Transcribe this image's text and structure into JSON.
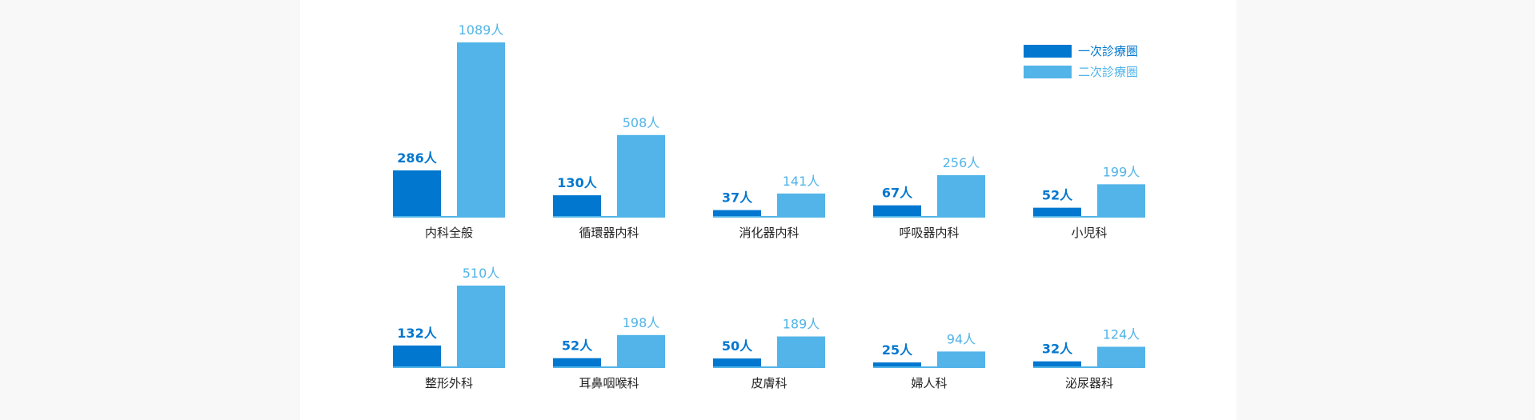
{
  "colors": {
    "primary": "#0277cf",
    "secondary": "#52b4e8",
    "axis": "#52b4e8",
    "text": "#222222"
  },
  "legend": {
    "series1": "一次診療圏",
    "series2": "二次診療圏"
  },
  "unit": "人",
  "chart_data": {
    "type": "bar",
    "legend_position": "top-right",
    "grid": false,
    "series": [
      {
        "name": "一次診療圏",
        "color": "#0277cf"
      },
      {
        "name": "二次診療圏",
        "color": "#52b4e8"
      }
    ],
    "rows": [
      {
        "ylim": [
          0,
          1089
        ],
        "categories": [
          "内科全般",
          "循環器内科",
          "消化器内科",
          "呼吸器内科",
          "小児科"
        ],
        "values": [
          [
            286,
            130,
            37,
            67,
            52
          ],
          [
            1089,
            508,
            141,
            256,
            199
          ]
        ]
      },
      {
        "ylim": [
          0,
          510
        ],
        "categories": [
          "整形外科",
          "耳鼻咽喉科",
          "皮膚科",
          "婦人科",
          "泌尿器科"
        ],
        "values": [
          [
            132,
            52,
            50,
            25,
            32
          ],
          [
            510,
            198,
            189,
            94,
            124
          ]
        ]
      }
    ]
  }
}
